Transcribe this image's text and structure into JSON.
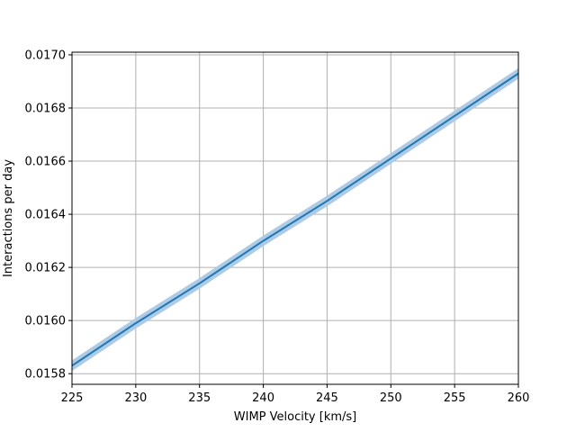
{
  "chart_data": {
    "type": "line",
    "title": "",
    "xlabel": "WIMP Velocity [km/s]",
    "ylabel": "Interactions per day",
    "xlim": [
      225,
      260
    ],
    "ylim": [
      0.01576,
      0.01701
    ],
    "xticks": [
      225,
      230,
      235,
      240,
      245,
      250,
      255,
      260
    ],
    "xtick_labels": [
      "225",
      "230",
      "235",
      "240",
      "245",
      "250",
      "255",
      "260"
    ],
    "yticks": [
      0.0158,
      0.016,
      0.0162,
      0.0164,
      0.0166,
      0.0168,
      0.017
    ],
    "ytick_labels": [
      "0.0158",
      "0.0160",
      "0.0162",
      "0.0164",
      "0.0166",
      "0.0168",
      "0.0170"
    ],
    "grid": true,
    "series": [
      {
        "x": [
          225,
          230,
          235,
          240,
          245,
          250,
          255,
          260
        ],
        "values": [
          0.01583,
          0.01599,
          0.01614,
          0.0163,
          0.01645,
          0.01661,
          0.01677,
          0.01693
        ],
        "band_halfwidth": 2e-05,
        "color": "#1f77b4",
        "band_color": "#aecbe6"
      }
    ]
  }
}
